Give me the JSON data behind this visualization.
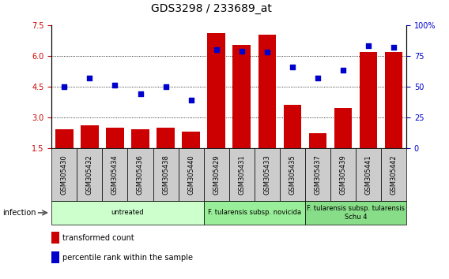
{
  "title": "GDS3298 / 233689_at",
  "samples": [
    "GSM305430",
    "GSM305432",
    "GSM305434",
    "GSM305436",
    "GSM305438",
    "GSM305440",
    "GSM305429",
    "GSM305431",
    "GSM305433",
    "GSM305435",
    "GSM305437",
    "GSM305439",
    "GSM305441",
    "GSM305442"
  ],
  "transformed_count": [
    2.4,
    2.6,
    2.5,
    2.4,
    2.5,
    2.3,
    7.1,
    6.55,
    7.05,
    3.6,
    2.2,
    3.45,
    6.2,
    6.2
  ],
  "percentile_rank": [
    50,
    57,
    51,
    44,
    50,
    39,
    80,
    79,
    78,
    66,
    57,
    63,
    83,
    82
  ],
  "ylim_left": [
    1.5,
    7.5
  ],
  "ylim_right": [
    0,
    100
  ],
  "yticks_left": [
    1.5,
    3.0,
    4.5,
    6.0,
    7.5
  ],
  "yticks_right": [
    0,
    25,
    50,
    75,
    100
  ],
  "bar_color": "#cc0000",
  "dot_color": "#0000cc",
  "grid_dotted_at": [
    3.0,
    4.5,
    6.0
  ],
  "group_boundaries": [
    {
      "label": "untreated",
      "start": 0,
      "end": 5,
      "color": "#ccffcc"
    },
    {
      "label": "F. tularensis subsp. novicida",
      "start": 6,
      "end": 9,
      "color": "#99ee99"
    },
    {
      "label": "F. tularensis subsp. tularensis\nSchu 4",
      "start": 10,
      "end": 13,
      "color": "#88dd88"
    }
  ],
  "infection_label": "infection",
  "legend_bar": "transformed count",
  "legend_dot": "percentile rank within the sample",
  "bar_width": 0.7,
  "cell_color": "#cccccc",
  "title_fontsize": 10,
  "tick_fontsize": 7,
  "sample_fontsize": 6,
  "group_fontsize": 6,
  "legend_fontsize": 7,
  "infection_fontsize": 7
}
